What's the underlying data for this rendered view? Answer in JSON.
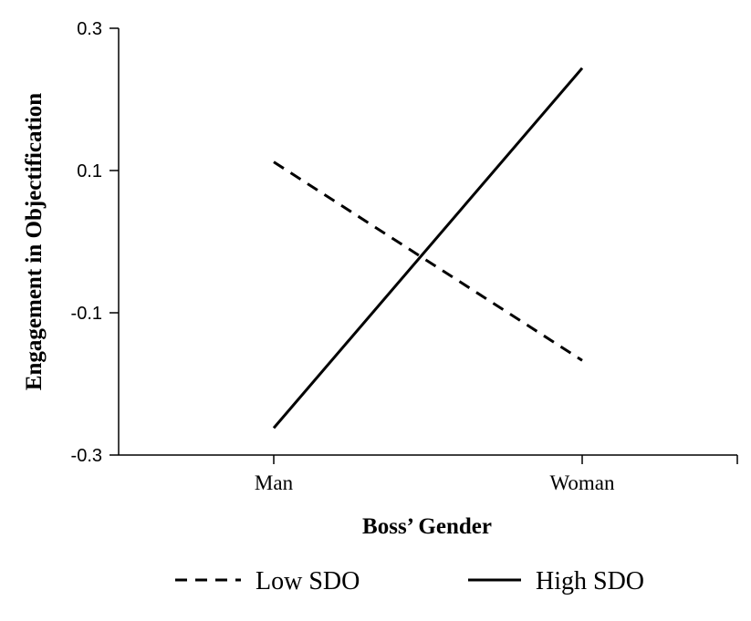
{
  "chart_data": {
    "type": "line",
    "title": "",
    "xlabel": "Boss’ Gender",
    "ylabel": "Engagement in Objectification",
    "categories": [
      "Man",
      "Woman"
    ],
    "ylim": [
      -0.3,
      0.3
    ],
    "yticks": [
      0.3,
      0.1,
      -0.1,
      -0.3
    ],
    "ytick_labels": [
      "0.3",
      "0.1",
      "-0.1",
      "-0.3"
    ],
    "grid": false,
    "legend_position": "bottom",
    "series": [
      {
        "name": "Low SDO",
        "values": [
          0.112,
          -0.167
        ],
        "style": "dashed",
        "color": "#000000"
      },
      {
        "name": "High SDO",
        "values": [
          -0.262,
          0.244
        ],
        "style": "solid",
        "color": "#000000"
      }
    ]
  }
}
